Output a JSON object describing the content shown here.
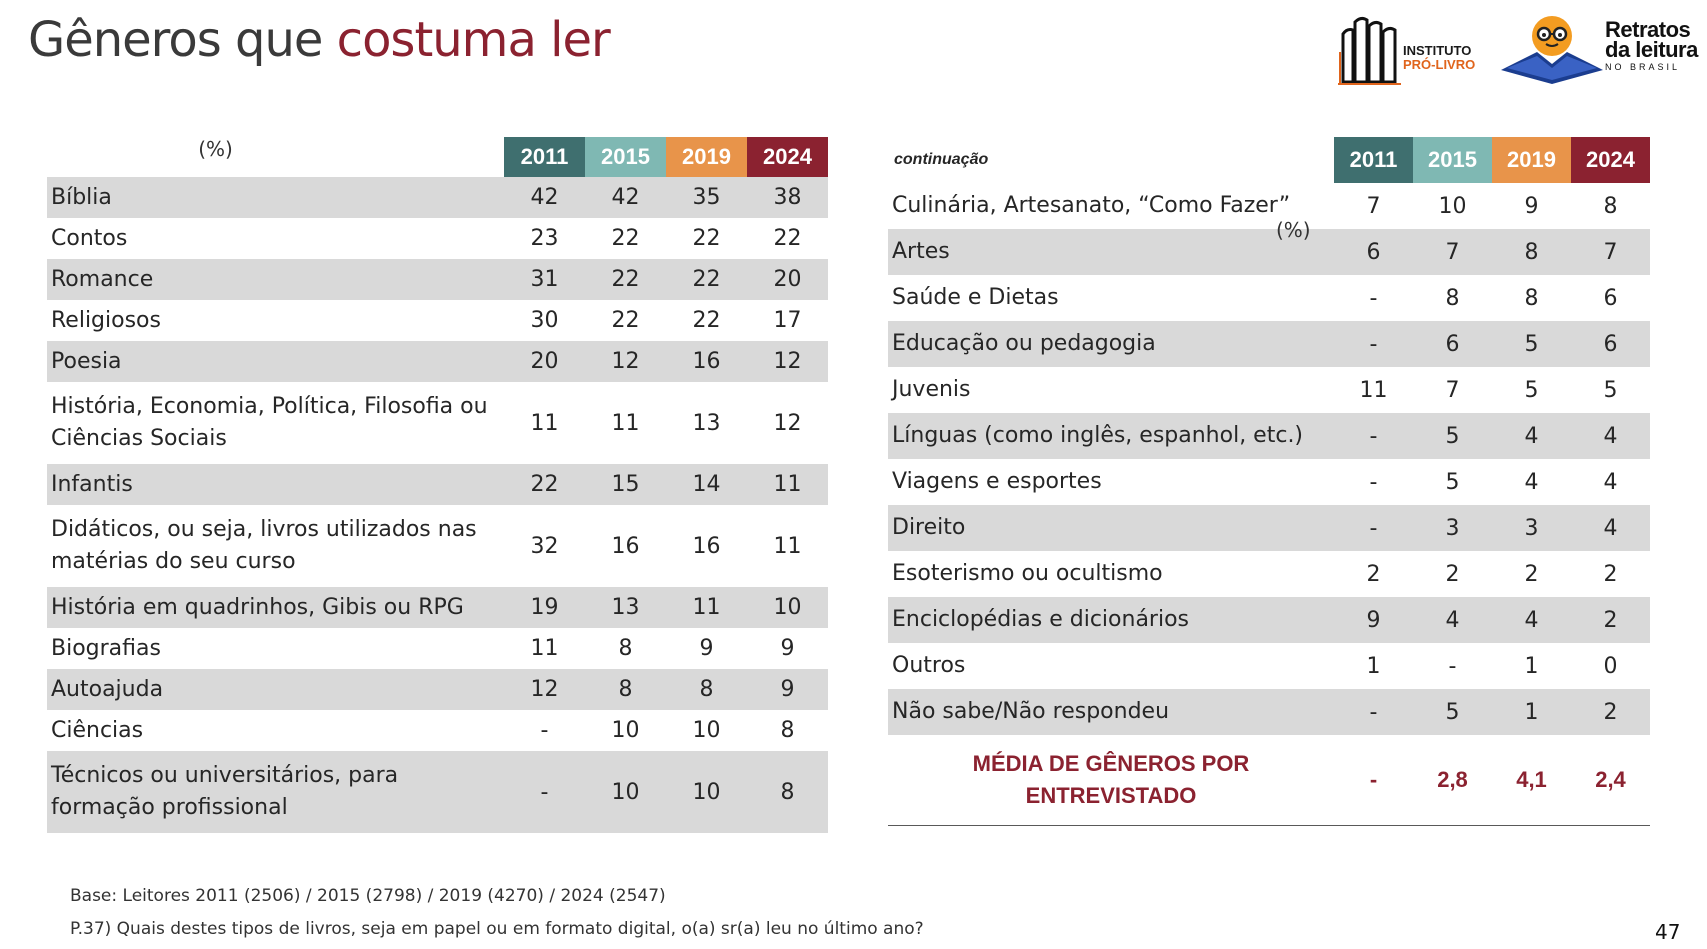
{
  "title": {
    "part1": "Gêneros que ",
    "part2": "costuma ler"
  },
  "logos": {
    "ipl_line1": "INSTITUTO",
    "ipl_line2": "PRÓ-LIVRO",
    "rl_line1": "Retratos",
    "rl_line2": "da leitura",
    "rl_line3": "NO BRASIL"
  },
  "years": [
    "2011",
    "2015",
    "2019",
    "2024"
  ],
  "year_colors": [
    "#3f6f6f",
    "#7fb8b3",
    "#e8944a",
    "#8b2230"
  ],
  "left_table": {
    "unit": "(%)",
    "rows": [
      {
        "label": "Bíblia",
        "values": [
          "42",
          "42",
          "35",
          "38"
        ]
      },
      {
        "label": "Contos",
        "values": [
          "23",
          "22",
          "22",
          "22"
        ]
      },
      {
        "label": "Romance",
        "values": [
          "31",
          "22",
          "22",
          "20"
        ]
      },
      {
        "label": "Religiosos",
        "values": [
          "30",
          "22",
          "22",
          "17"
        ]
      },
      {
        "label": "Poesia",
        "values": [
          "20",
          "12",
          "16",
          "12"
        ]
      },
      {
        "label": "História, Economia, Política, Filosofia ou Ciências Sociais",
        "values": [
          "11",
          "11",
          "13",
          "12"
        ]
      },
      {
        "label": "Infantis",
        "values": [
          "22",
          "15",
          "14",
          "11"
        ]
      },
      {
        "label": "Didáticos, ou seja, livros utilizados nas matérias do seu curso",
        "values": [
          "32",
          "16",
          "16",
          "11"
        ]
      },
      {
        "label": "História em quadrinhos, Gibis ou RPG",
        "values": [
          "19",
          "13",
          "11",
          "10"
        ]
      },
      {
        "label": "Biografias",
        "values": [
          "11",
          "8",
          "9",
          "9"
        ]
      },
      {
        "label": "Autoajuda",
        "values": [
          "12",
          "8",
          "8",
          "9"
        ]
      },
      {
        "label": "Ciências",
        "values": [
          "-",
          "10",
          "10",
          "8"
        ]
      },
      {
        "label": "Técnicos ou universitários, para formação profissional",
        "values": [
          "-",
          "10",
          "10",
          "8"
        ]
      }
    ]
  },
  "right_table": {
    "continuation": "continuação",
    "unit": "(%)",
    "rows": [
      {
        "label": "Culinária, Artesanato, “Como Fazer”",
        "values": [
          "7",
          "10",
          "9",
          "8"
        ]
      },
      {
        "label": "Artes",
        "values": [
          "6",
          "7",
          "8",
          "7"
        ]
      },
      {
        "label": "Saúde e Dietas",
        "values": [
          "-",
          "8",
          "8",
          "6"
        ]
      },
      {
        "label": "Educação ou pedagogia",
        "values": [
          "-",
          "6",
          "5",
          "6"
        ]
      },
      {
        "label": "Juvenis",
        "values": [
          "11",
          "7",
          "5",
          "5"
        ]
      },
      {
        "label": "Línguas (como inglês, espanhol, etc.)",
        "values": [
          "-",
          "5",
          "4",
          "4"
        ]
      },
      {
        "label": "Viagens e esportes",
        "values": [
          "-",
          "5",
          "4",
          "4"
        ]
      },
      {
        "label": "Direito",
        "values": [
          "-",
          "3",
          "3",
          "4"
        ]
      },
      {
        "label": "Esoterismo ou ocultismo",
        "values": [
          "2",
          "2",
          "2",
          "2"
        ]
      },
      {
        "label": "Enciclopédias e dicionários",
        "values": [
          "9",
          "4",
          "4",
          "2"
        ]
      },
      {
        "label": "Outros",
        "values": [
          "1",
          "-",
          "1",
          "0"
        ]
      },
      {
        "label": "Não sabe/Não respondeu",
        "values": [
          "-",
          "5",
          "1",
          "2"
        ]
      }
    ],
    "average": {
      "label": "MÉDIA DE GÊNEROS POR ENTREVISTADO",
      "values": [
        "-",
        "2,8",
        "4,1",
        "2,4"
      ]
    }
  },
  "footer": {
    "base": "Base: Leitores 2011 (2506) / 2015 (2798) / 2019 (4270) / 2024 (2547)",
    "question": "P.37) Quais destes tipos de livros, seja em papel ou em formato digital, o(a) sr(a) leu no último ano?",
    "page": "47"
  }
}
